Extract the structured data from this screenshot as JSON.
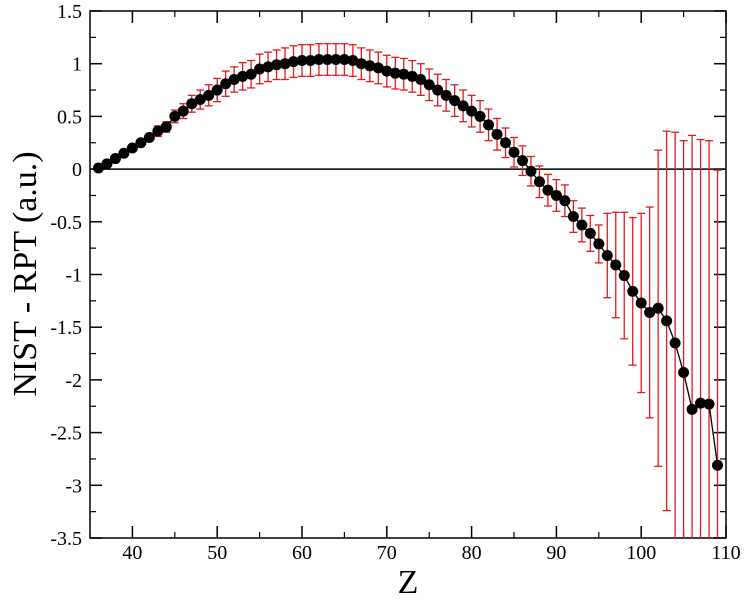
{
  "chart_data": {
    "type": "scatter",
    "title": "",
    "xlabel": "Z",
    "ylabel": "NIST - RPT (a.u.)",
    "xlim": [
      35,
      110
    ],
    "ylim": [
      -3.5,
      1.5
    ],
    "xticks": [
      40,
      50,
      60,
      70,
      80,
      90,
      100,
      110
    ],
    "yticks": [
      -3.5,
      -3,
      -2.5,
      -2,
      -1.5,
      -1,
      -0.5,
      0,
      0.5,
      1,
      1.5
    ],
    "xtick_labels": [
      "40",
      "50",
      "60",
      "70",
      "80",
      "90",
      "100",
      "110"
    ],
    "ytick_labels": [
      "-3.5",
      "-3",
      "-2.5",
      "-2",
      "-1.5",
      "-1",
      "-0.5",
      "0",
      "0.5",
      "1",
      "1.5"
    ],
    "reference_line_y": 0,
    "grid": false,
    "colors": {
      "points": "#000000",
      "line": "#000000",
      "error_bars": "#e31a1c",
      "zero_line": "#000000"
    },
    "series": [
      {
        "x": [
          36,
          37,
          38,
          39,
          40,
          41,
          42,
          43,
          44,
          45,
          46,
          47,
          48,
          49,
          50,
          51,
          52,
          53,
          54,
          55,
          56,
          57,
          58,
          59,
          60,
          61,
          62,
          63,
          64,
          65,
          66,
          67,
          68,
          69,
          70,
          71,
          72,
          73,
          74,
          75,
          76,
          77,
          78,
          79,
          80,
          81,
          82,
          83,
          84,
          85,
          86,
          87,
          88,
          89,
          90,
          91,
          92,
          93,
          94,
          95,
          96,
          97,
          98,
          99,
          100,
          101,
          102,
          103,
          104,
          105,
          106,
          107,
          108,
          109
        ],
        "y": [
          0.01,
          0.05,
          0.1,
          0.15,
          0.2,
          0.25,
          0.3,
          0.36,
          0.4,
          0.5,
          0.55,
          0.62,
          0.66,
          0.7,
          0.75,
          0.81,
          0.85,
          0.88,
          0.9,
          0.95,
          0.97,
          0.99,
          1.0,
          1.02,
          1.03,
          1.03,
          1.04,
          1.04,
          1.04,
          1.04,
          1.03,
          1.0,
          0.98,
          0.96,
          0.93,
          0.91,
          0.9,
          0.88,
          0.85,
          0.8,
          0.75,
          0.7,
          0.65,
          0.6,
          0.55,
          0.5,
          0.42,
          0.33,
          0.25,
          0.16,
          0.08,
          -0.02,
          -0.12,
          -0.2,
          -0.25,
          -0.3,
          -0.45,
          -0.53,
          -0.61,
          -0.71,
          -0.82,
          -0.91,
          -1.01,
          -1.16,
          -1.27,
          -1.36,
          -1.32,
          -1.44,
          -1.65,
          -1.93,
          -2.28,
          -2.22,
          -2.23,
          -2.81
        ],
        "y_error": [
          0.02,
          0.02,
          0.02,
          0.02,
          0.02,
          0.03,
          0.03,
          0.05,
          0.05,
          0.06,
          0.07,
          0.08,
          0.09,
          0.1,
          0.11,
          0.12,
          0.12,
          0.13,
          0.13,
          0.14,
          0.14,
          0.14,
          0.15,
          0.15,
          0.15,
          0.15,
          0.15,
          0.15,
          0.15,
          0.15,
          0.15,
          0.15,
          0.15,
          0.15,
          0.15,
          0.15,
          0.15,
          0.15,
          0.15,
          0.15,
          0.15,
          0.15,
          0.15,
          0.15,
          0.15,
          0.15,
          0.15,
          0.15,
          0.14,
          0.14,
          0.14,
          0.14,
          0.15,
          0.15,
          0.15,
          0.15,
          0.15,
          0.16,
          0.17,
          0.18,
          0.4,
          0.5,
          0.6,
          0.7,
          0.85,
          1.0,
          1.5,
          1.8,
          2.0,
          2.2,
          2.6,
          2.5,
          2.5,
          2.8
        ]
      }
    ]
  }
}
